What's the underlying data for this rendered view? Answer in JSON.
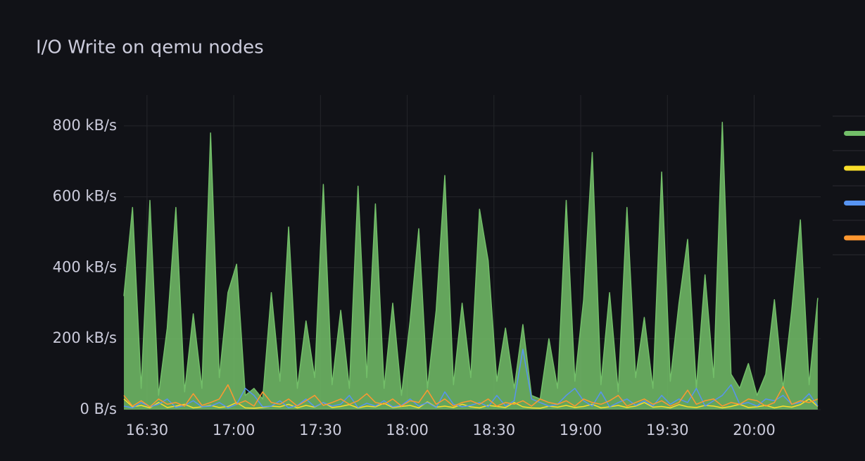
{
  "chart_data": {
    "type": "line",
    "title": "I/O Write on qemu nodes",
    "x": [
      "16:22",
      "16:25",
      "16:28",
      "16:31",
      "16:34",
      "16:37",
      "16:40",
      "16:43",
      "16:46",
      "16:49",
      "16:52",
      "16:55",
      "16:58",
      "17:01",
      "17:04",
      "17:07",
      "17:10",
      "17:13",
      "17:16",
      "17:19",
      "17:22",
      "17:25",
      "17:28",
      "17:31",
      "17:34",
      "17:37",
      "17:40",
      "17:43",
      "17:46",
      "17:49",
      "17:52",
      "17:55",
      "17:58",
      "18:01",
      "18:04",
      "18:07",
      "18:10",
      "18:13",
      "18:16",
      "18:19",
      "18:22",
      "18:25",
      "18:28",
      "18:31",
      "18:34",
      "18:37",
      "18:40",
      "18:43",
      "18:46",
      "18:49",
      "18:52",
      "18:55",
      "18:58",
      "19:01",
      "19:04",
      "19:07",
      "19:10",
      "19:13",
      "19:16",
      "19:19",
      "19:22",
      "19:25",
      "19:28",
      "19:31",
      "19:34",
      "19:37",
      "19:40",
      "19:43",
      "19:46",
      "19:49",
      "19:52",
      "19:55",
      "19:58",
      "20:01",
      "20:04",
      "20:07",
      "20:10",
      "20:13",
      "20:16",
      "20:19",
      "20:22"
    ],
    "series": [
      {
        "color": "#73bf69",
        "fill_opacity": 0.85,
        "values": [
          320,
          570,
          60,
          590,
          40,
          230,
          570,
          50,
          270,
          60,
          780,
          90,
          330,
          410,
          40,
          60,
          30,
          330,
          80,
          515,
          60,
          250,
          90,
          635,
          70,
          280,
          60,
          630,
          90,
          580,
          60,
          300,
          40,
          250,
          510,
          60,
          280,
          660,
          70,
          300,
          90,
          565,
          420,
          80,
          230,
          60,
          240,
          40,
          30,
          200,
          60,
          590,
          80,
          310,
          725,
          70,
          330,
          50,
          570,
          90,
          260,
          60,
          670,
          80,
          300,
          480,
          60,
          380,
          90,
          810,
          100,
          60,
          130,
          40,
          100,
          310,
          60,
          280,
          535,
          70,
          315
        ]
      },
      {
        "color": "#fade2a",
        "values": [
          30,
          8,
          12,
          5,
          20,
          6,
          10,
          15,
          5,
          8,
          12,
          6,
          9,
          20,
          5,
          4,
          6,
          10,
          8,
          15,
          5,
          12,
          7,
          20,
          6,
          9,
          14,
          5,
          10,
          8,
          18,
          6,
          9,
          12,
          5,
          22,
          7,
          10,
          6,
          15,
          8,
          5,
          12,
          9,
          6,
          20,
          8,
          5,
          4,
          10,
          7,
          12,
          6,
          9,
          15,
          5,
          8,
          12,
          6,
          10,
          20,
          7,
          9,
          5,
          14,
          8,
          6,
          12,
          10,
          5,
          9,
          15,
          6,
          8,
          12,
          5,
          10,
          7,
          14,
          30,
          9
        ]
      },
      {
        "color": "#5794f2",
        "values": [
          10,
          5,
          20,
          8,
          15,
          30,
          6,
          12,
          25,
          8,
          10,
          20,
          5,
          15,
          60,
          40,
          8,
          10,
          25,
          5,
          12,
          30,
          8,
          20,
          10,
          15,
          40,
          6,
          18,
          10,
          25,
          8,
          12,
          30,
          10,
          20,
          6,
          50,
          15,
          8,
          12,
          20,
          8,
          40,
          10,
          25,
          170,
          30,
          20,
          10,
          15,
          40,
          60,
          25,
          10,
          50,
          8,
          20,
          30,
          12,
          25,
          10,
          40,
          15,
          30,
          20,
          60,
          10,
          25,
          40,
          70,
          15,
          20,
          10,
          30,
          25,
          40,
          15,
          20,
          45,
          10
        ]
      },
      {
        "color": "#ff9830",
        "values": [
          40,
          10,
          25,
          8,
          30,
          15,
          20,
          10,
          45,
          12,
          20,
          30,
          70,
          15,
          25,
          10,
          50,
          20,
          15,
          30,
          10,
          25,
          40,
          12,
          20,
          30,
          15,
          25,
          45,
          20,
          15,
          30,
          10,
          25,
          20,
          55,
          15,
          30,
          10,
          20,
          25,
          15,
          30,
          10,
          20,
          15,
          25,
          10,
          30,
          20,
          15,
          25,
          10,
          30,
          20,
          15,
          25,
          40,
          10,
          20,
          30,
          15,
          25,
          10,
          20,
          55,
          15,
          25,
          30,
          10,
          20,
          15,
          30,
          25,
          10,
          20,
          65,
          15,
          25,
          20,
          30
        ]
      }
    ],
    "xlim": [
      "16:22",
      "20:23"
    ],
    "xticks": [
      "16:30",
      "17:00",
      "17:30",
      "18:00",
      "18:30",
      "19:00",
      "19:30",
      "20:00"
    ],
    "ylim": [
      0,
      887
    ],
    "yticks": [
      {
        "value": 0,
        "label": "0 B/s"
      },
      {
        "value": 200,
        "label": "200 kB/s"
      },
      {
        "value": 400,
        "label": "400 kB/s"
      },
      {
        "value": 600,
        "label": "600 kB/s"
      },
      {
        "value": 800,
        "label": "800 kB/s"
      }
    ],
    "grid": true
  }
}
